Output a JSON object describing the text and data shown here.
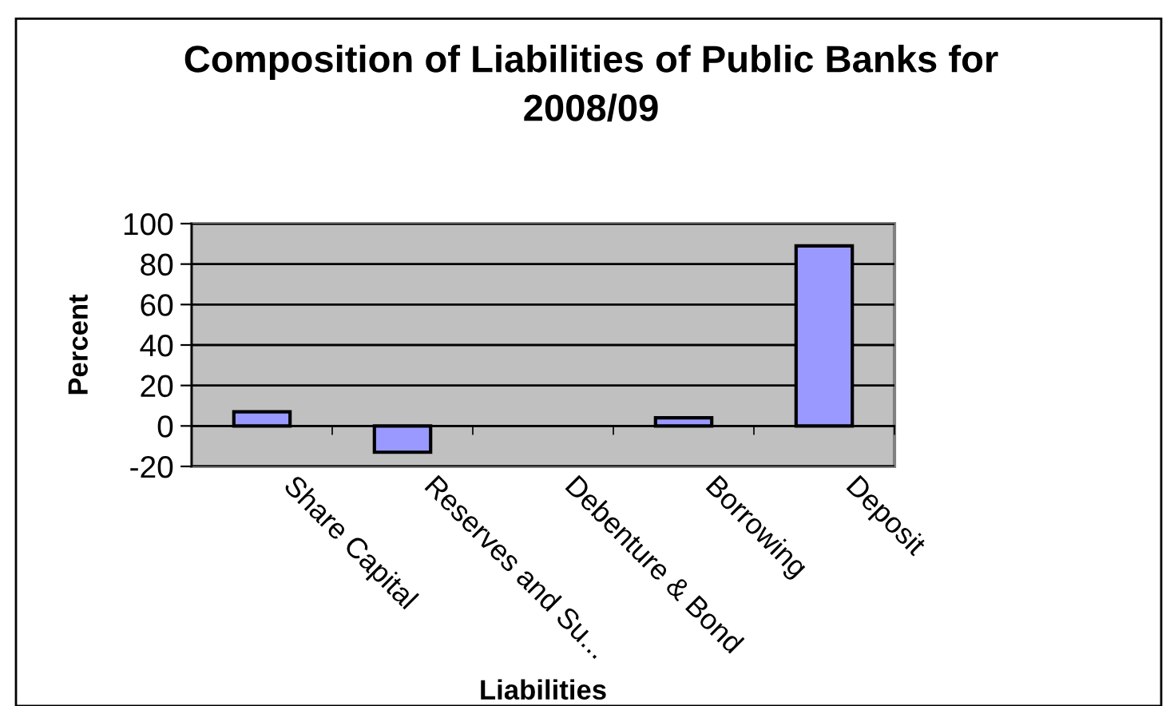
{
  "chart_data": {
    "type": "bar",
    "title": "Composition of Liabilities of Public Banks for\n2008/09",
    "xlabel": "Liabilities",
    "ylabel": "Percent",
    "categories": [
      "Share Capital",
      "Reserves and Su...",
      "Debenture & Bond",
      "Borrowing",
      "Deposit"
    ],
    "values": [
      7,
      -13,
      null,
      4,
      89
    ],
    "color": "#9999ff",
    "ylim": [
      -20,
      100
    ],
    "yticks": [
      -20,
      0,
      20,
      40,
      60,
      80,
      100
    ],
    "grid": "y"
  }
}
